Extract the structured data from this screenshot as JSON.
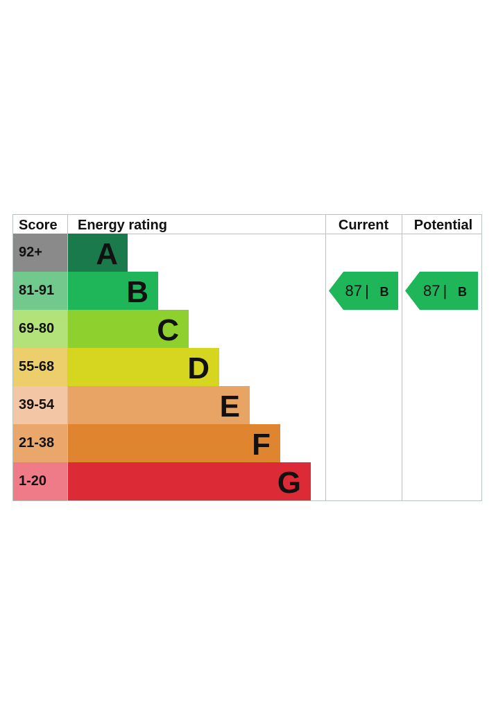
{
  "chart_data": {
    "type": "bar",
    "headers": {
      "score": "Score",
      "rating": "Energy rating",
      "current": "Current",
      "potential": "Potential"
    },
    "bands": [
      {
        "letter": "A",
        "range": "92+",
        "color": "#1a7a4c",
        "score_color": "#8a8a8a"
      },
      {
        "letter": "B",
        "range": "81-91",
        "color": "#1fb659",
        "score_color": "#72c98e"
      },
      {
        "letter": "C",
        "range": "69-80",
        "color": "#8ed12e",
        "score_color": "#b3e27b"
      },
      {
        "letter": "D",
        "range": "55-68",
        "color": "#d6d620",
        "score_color": "#eccf6a"
      },
      {
        "letter": "E",
        "range": "39-54",
        "color": "#e8a464",
        "score_color": "#f3c6a6"
      },
      {
        "letter": "F",
        "range": "21-38",
        "color": "#df8530",
        "score_color": "#e9a76b"
      },
      {
        "letter": "G",
        "range": "1-20",
        "color": "#dc2a36",
        "score_color": "#ef7a88"
      }
    ],
    "current": {
      "value": 87,
      "value_label": "87",
      "separator": "|",
      "band": "B",
      "color": "#1fb659"
    },
    "potential": {
      "value": 87,
      "value_label": "87",
      "separator": "|",
      "band": "B",
      "color": "#1fb659"
    },
    "grid_color": "#b8c4c0"
  }
}
